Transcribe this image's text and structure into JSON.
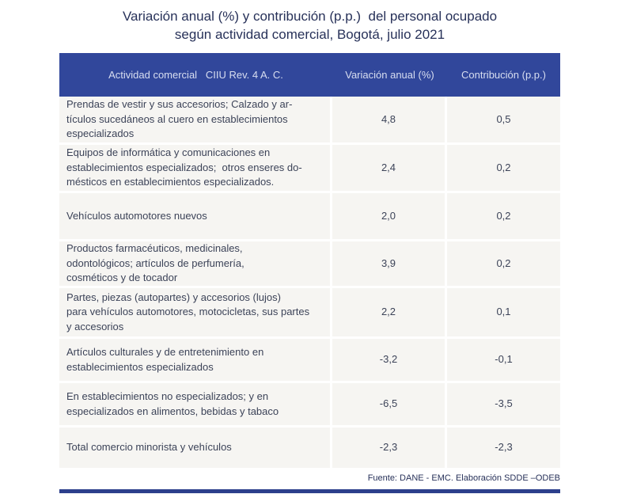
{
  "title": {
    "line1": "Variación anual (%) y contribución (p.p.)  del personal ocupado",
    "line2": "según actividad comercial, Bogotá, julio 2021"
  },
  "table": {
    "header": {
      "col1": "Actividad comercial   CIIU Rev. 4 A. C.",
      "col2": "Variación anual (%)",
      "col3": "Contribución (p.p.)"
    },
    "rows": [
      {
        "actividad": "Prendas de vestir y sus accesorios; Calzado y ar-\ntículos sucedáneos al cuero en establecimientos\nespecializados",
        "variacion": "4,8",
        "contribucion": "0,5"
      },
      {
        "actividad": "Equipos de informática y comunicaciones en\nestablecimientos especializados;  otros enseres do-\nmésticos en establecimientos especializados.",
        "variacion": "2,4",
        "contribucion": "0,2"
      },
      {
        "actividad": "Vehículos automotores nuevos",
        "variacion": "2,0",
        "contribucion": "0,2"
      },
      {
        "actividad": "Productos farmacéuticos, medicinales,\nodontológicos; artículos de perfumería,\ncosméticos y de tocador",
        "variacion": "3,9",
        "contribucion": "0,2"
      },
      {
        "actividad": "Partes, piezas (autopartes) y accesorios (lujos)\npara vehículos automotores, motocicletas, sus partes\ny accesorios",
        "variacion": "2,2",
        "contribucion": "0,1"
      },
      {
        "actividad": "Artículos culturales y de entretenimiento en\nestablecimientos especializados",
        "variacion": "-3,2",
        "contribucion": "-0,1"
      },
      {
        "actividad": "En establecimientos no especializados; y en\nespecializados en alimentos, bebidas y tabaco",
        "variacion": "-6,5",
        "contribucion": "-3,5"
      },
      {
        "actividad": "Total comercio minorista y vehículos",
        "variacion": "-2,3",
        "contribucion": "-2,3"
      }
    ]
  },
  "footer": {
    "source": "Fuente: DANE - EMC. Elaboración SDDE –ODEB"
  },
  "colors": {
    "header_bg": "#31479B",
    "header_text": "#D8DEF0",
    "row_bg": "#F6F5F2",
    "body_text": "#3C4358",
    "title_text": "#273159",
    "bottom_rule": "#2C3F8C"
  },
  "chart_data": {
    "type": "table",
    "title": "Variación anual (%) y contribución (p.p.) del personal ocupado según actividad comercial, Bogotá, julio 2021",
    "columns": [
      "Actividad comercial CIIU Rev. 4 A. C.",
      "Variación anual (%)",
      "Contribución (p.p.)"
    ],
    "rows": [
      [
        "Prendas de vestir y sus accesorios; Calzado y artículos sucedáneos al cuero en establecimientos especializados",
        4.8,
        0.5
      ],
      [
        "Equipos de informática y comunicaciones en establecimientos especializados; otros enseres domésticos en establecimientos especializados.",
        2.4,
        0.2
      ],
      [
        "Vehículos automotores nuevos",
        2.0,
        0.2
      ],
      [
        "Productos farmacéuticos, medicinales, odontológicos; artículos de perfumería, cosméticos y de tocador",
        3.9,
        0.2
      ],
      [
        "Partes, piezas (autopartes) y accesorios (lujos) para vehículos automotores, motocicletas, sus partes y accesorios",
        2.2,
        0.1
      ],
      [
        "Artículos culturales y de entretenimiento en establecimientos especializados",
        -3.2,
        -0.1
      ],
      [
        "En establecimientos no especializados; y en especializados en alimentos, bebidas y tabaco",
        -6.5,
        -3.5
      ],
      [
        "Total comercio minorista y vehículos",
        -2.3,
        -2.3
      ]
    ],
    "source": "Fuente: DANE - EMC. Elaboración SDDE –ODEB"
  }
}
